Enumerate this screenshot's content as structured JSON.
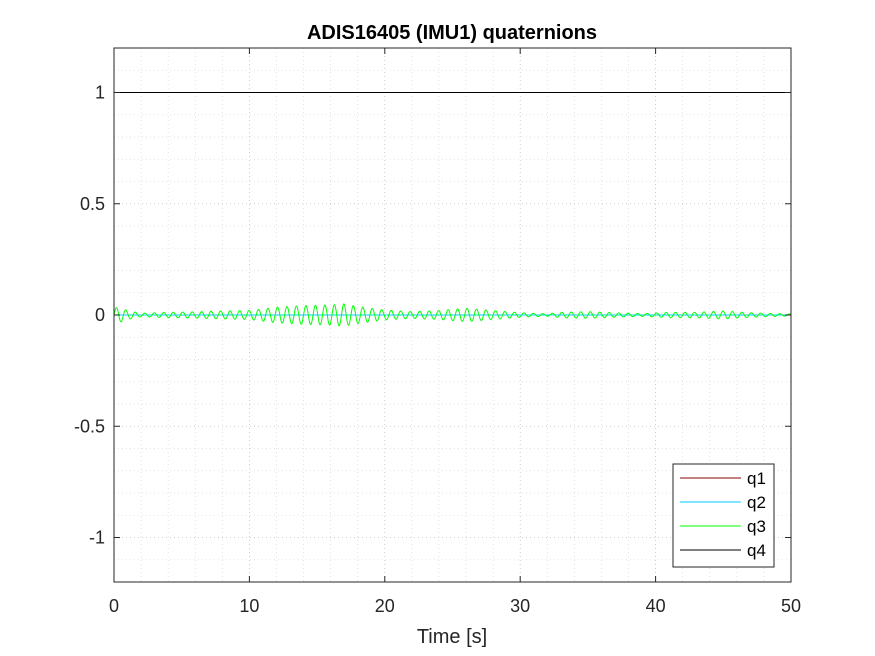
{
  "chart_data": {
    "type": "line",
    "title": "ADIS16405 (IMU1) quaternions",
    "xlabel": "Time [s]",
    "ylabel": "",
    "xlim": [
      0,
      50
    ],
    "ylim": [
      -1.2,
      1.2
    ],
    "x_ticks": [
      0,
      10,
      20,
      30,
      40,
      50
    ],
    "x_tick_labels": [
      "0",
      "10",
      "20",
      "30",
      "40",
      "50"
    ],
    "y_ticks": [
      1,
      0.5,
      0,
      -0.5,
      -1
    ],
    "y_tick_labels": [
      "1",
      "0.5",
      "0",
      "-0.5",
      "-1"
    ],
    "grid": "on (major and minor, dotted)",
    "legend_position": "bottom-right",
    "series": [
      {
        "name": "q1",
        "color": "#8b0000",
        "x": [
          0,
          50
        ],
        "y": [
          0,
          0
        ]
      },
      {
        "name": "q2",
        "color": "#00ccff",
        "x": [
          0,
          50
        ],
        "y": [
          0,
          0
        ]
      },
      {
        "name": "q3",
        "color": "#00ff00",
        "description_of_shape": "oscillation about 0",
        "envelope_x": [
          0,
          0.3,
          1,
          2,
          4,
          6,
          8,
          10,
          12,
          14,
          16,
          17,
          18,
          20,
          22,
          24,
          26,
          28,
          30,
          32,
          33,
          35,
          37,
          39,
          41,
          43,
          45,
          47,
          50
        ],
        "envelope_amp": [
          0.03,
          0.035,
          0.02,
          0.008,
          0.012,
          0.014,
          0.018,
          0.02,
          0.035,
          0.042,
          0.045,
          0.05,
          0.038,
          0.022,
          0.015,
          0.02,
          0.03,
          0.02,
          0.01,
          0.005,
          0.012,
          0.015,
          0.01,
          0.006,
          0.012,
          0.012,
          0.018,
          0.01,
          0.004
        ],
        "oscillation_period_s": 0.7
      },
      {
        "name": "q4",
        "color": "#000000",
        "x": [
          0,
          50
        ],
        "y": [
          1,
          1
        ]
      }
    ]
  }
}
